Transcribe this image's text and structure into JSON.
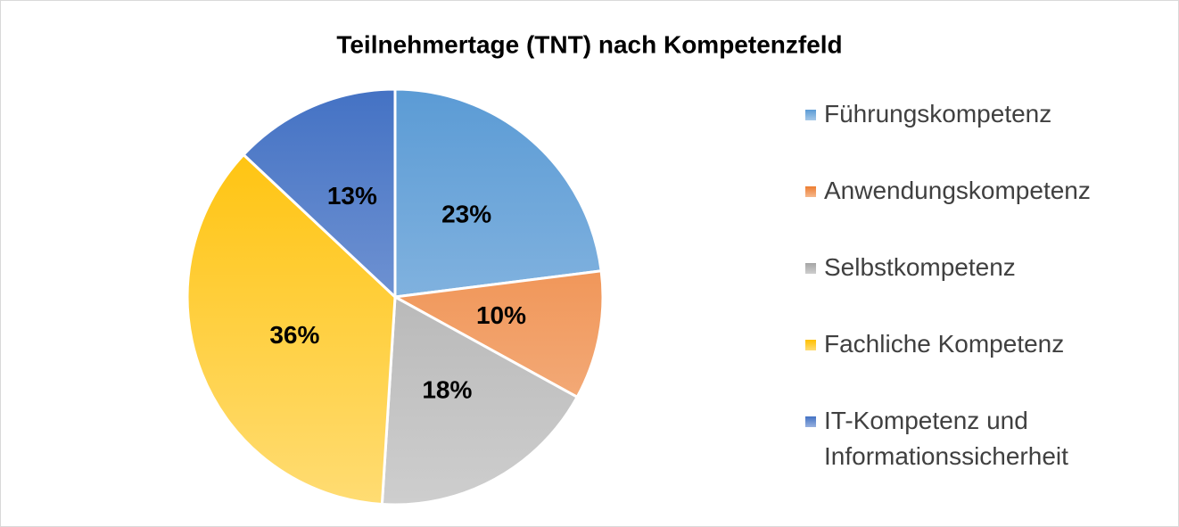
{
  "chart_data": {
    "type": "pie",
    "title": "Teilnehmertage (TNT) nach Kompetenzfeld",
    "categories": [
      "Führungskompetenz",
      "Anwendungskompetenz",
      "Selbstkompetenz",
      "Fachliche Kompetenz",
      "IT-Kompetenz und Informationssicherheit"
    ],
    "values": [
      23,
      10,
      18,
      36,
      13
    ],
    "colors": [
      "#5b9bd5",
      "#ed7d31",
      "#a5a5a5",
      "#ffc000",
      "#4472c4"
    ],
    "legend": "right"
  }
}
